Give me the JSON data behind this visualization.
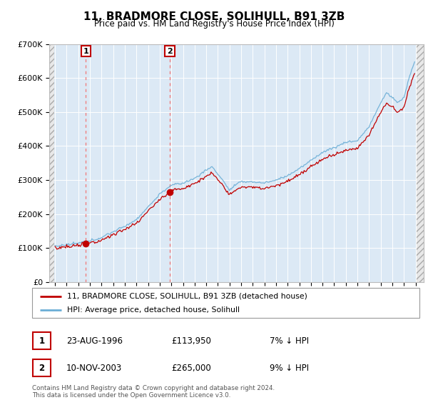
{
  "title": "11, BRADMORE CLOSE, SOLIHULL, B91 3ZB",
  "subtitle": "Price paid vs. HM Land Registry's House Price Index (HPI)",
  "legend_line1": "11, BRADMORE CLOSE, SOLIHULL, B91 3ZB (detached house)",
  "legend_line2": "HPI: Average price, detached house, Solihull",
  "table": [
    {
      "num": "1",
      "date": "23-AUG-1996",
      "price": "£113,950",
      "hpi": "7% ↓ HPI"
    },
    {
      "num": "2",
      "date": "10-NOV-2003",
      "price": "£265,000",
      "hpi": "9% ↓ HPI"
    }
  ],
  "footnote": "Contains HM Land Registry data © Crown copyright and database right 2024.\nThis data is licensed under the Open Government Licence v3.0.",
  "purchase_dates": [
    1996.644,
    2003.872
  ],
  "purchase_prices": [
    113950,
    265000
  ],
  "hpi_color": "#6baed6",
  "price_color": "#c00000",
  "ylim": [
    0,
    700000
  ],
  "xlim_start": 1993.5,
  "xlim_end": 2025.7,
  "hatch_end": 1993.92,
  "hatch_start_right": 2025.08
}
